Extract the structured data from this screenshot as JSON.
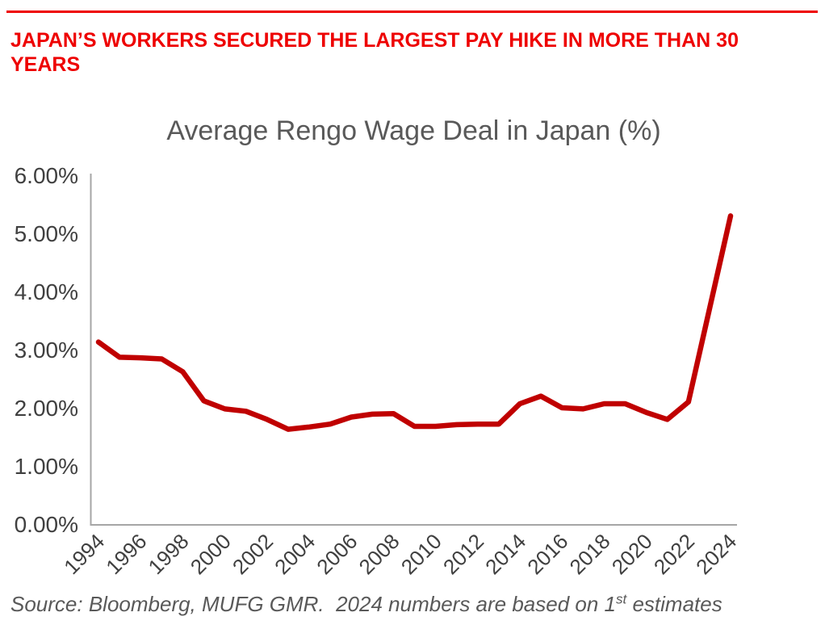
{
  "headline": {
    "line1": "JAPAN’S WORKERS SECURED THE LARGEST PAY HIKE IN MORE THAN 30",
    "line2": "YEARS"
  },
  "chart_data": {
    "type": "line",
    "title": "Average Rengo Wage Deal in Japan (%)",
    "series": [
      {
        "name": "Average Rengo wage deal (%)",
        "x": [
          1994,
          1995,
          1996,
          1997,
          1998,
          1999,
          2000,
          2001,
          2002,
          2003,
          2004,
          2005,
          2006,
          2007,
          2008,
          2009,
          2010,
          2011,
          2012,
          2013,
          2014,
          2015,
          2016,
          2017,
          2018,
          2019,
          2020,
          2021,
          2022,
          2023,
          2024
        ],
        "values": [
          3.13,
          2.87,
          2.86,
          2.84,
          2.62,
          2.12,
          1.98,
          1.94,
          1.8,
          1.63,
          1.67,
          1.72,
          1.84,
          1.89,
          1.9,
          1.68,
          1.68,
          1.71,
          1.72,
          1.72,
          2.07,
          2.2,
          2.0,
          1.98,
          2.07,
          2.07,
          1.92,
          1.8,
          2.1,
          3.7,
          5.3
        ]
      }
    ],
    "xlabel": "",
    "ylabel": "",
    "xlim": [
      1994,
      2024
    ],
    "ylim": [
      0,
      6
    ],
    "ytick_labels": [
      "0.00%",
      "1.00%",
      "2.00%",
      "3.00%",
      "4.00%",
      "5.00%",
      "6.00%"
    ],
    "xtick_labels": [
      "1994",
      "1996",
      "1998",
      "2000",
      "2002",
      "2004",
      "2006",
      "2008",
      "2010",
      "2012",
      "2014",
      "2016",
      "2018",
      "2020",
      "2022",
      "2024"
    ],
    "grid": false,
    "legend_position": "none"
  },
  "source_note": {
    "text": "Source: Bloomberg, MUFG GMR.  2024 numbers are based on 1",
    "superscript": "st",
    "suffix": " estimates"
  },
  "colors": {
    "headline_red": "#ee0000",
    "line_red": "#c00000",
    "title_gray": "#595959",
    "axis_label_gray": "#404040",
    "axis_line_gray": "#a6a6a6"
  }
}
